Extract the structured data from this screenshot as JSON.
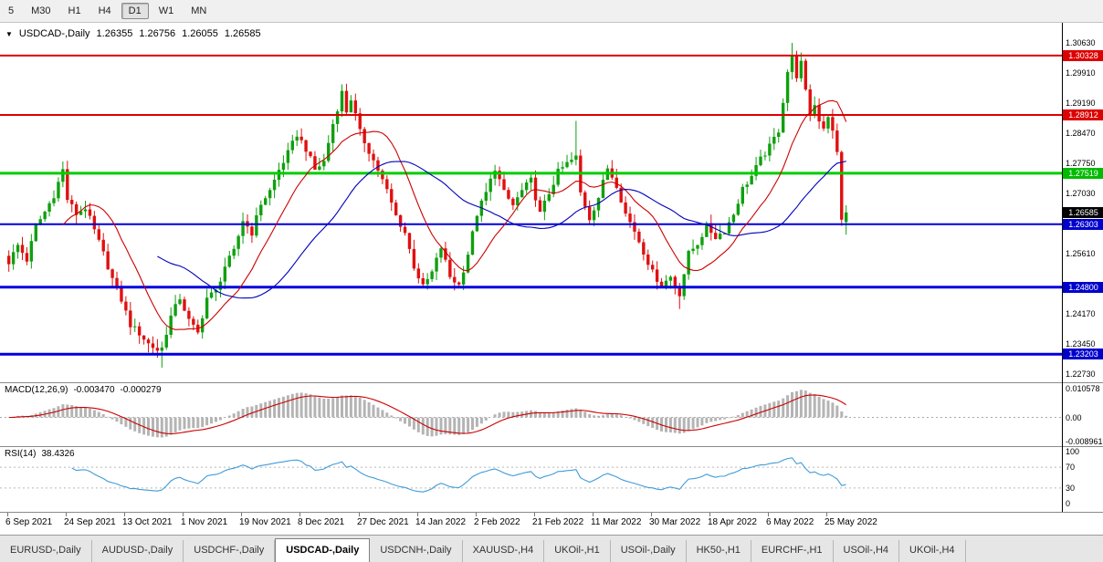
{
  "toolbar": {
    "timeframes": [
      "5",
      "M30",
      "H1",
      "H4",
      "D1",
      "W1",
      "MN"
    ],
    "active": "D1"
  },
  "chart": {
    "symbol_label": "USDCAD-,Daily",
    "ohlc": {
      "open": "1.26355",
      "high": "1.26756",
      "low": "1.26055",
      "close": "1.26585"
    }
  },
  "colors": {
    "candle_up": "#0fa00f",
    "candle_down": "#e01010",
    "ma_fast": "#cc0000",
    "ma_slow": "#0000bb",
    "macd_hist": "#b4b4b4",
    "macd_signal": "#cc0000",
    "rsi_line": "#3f9bd8",
    "hline_red": "#dd0000",
    "hline_green": "#00cc00",
    "hline_blue": "#0000dd",
    "current_price_badge": "#000000"
  },
  "hlines": [
    {
      "value": 1.30328,
      "color": "#dd0000",
      "width": 2
    },
    {
      "value": 1.28912,
      "color": "#dd0000",
      "width": 2
    },
    {
      "value": 1.27519,
      "color": "#00cc00",
      "width": 3
    },
    {
      "value": 1.26303,
      "color": "#0000dd",
      "width": 2
    },
    {
      "value": 1.248,
      "color": "#0000dd",
      "width": 3
    },
    {
      "value": 1.23203,
      "color": "#0000dd",
      "width": 3
    }
  ],
  "price_axis": {
    "ticks": [
      {
        "label": "1.30630",
        "value": 1.3063
      },
      {
        "label": "1.29910",
        "value": 1.2991
      },
      {
        "label": "1.29190",
        "value": 1.2919
      },
      {
        "label": "1.28470",
        "value": 1.2847
      },
      {
        "label": "1.27750",
        "value": 1.2775
      },
      {
        "label": "1.27030",
        "value": 1.2703
      },
      {
        "label": "1.25610",
        "value": 1.2561
      },
      {
        "label": "1.24170",
        "value": 1.2417
      },
      {
        "label": "1.23450",
        "value": 1.2345
      },
      {
        "label": "1.22730",
        "value": 1.2273
      }
    ],
    "badges": [
      {
        "label": "1.30328",
        "value": 1.30328,
        "color": "#dd0000"
      },
      {
        "label": "1.28912",
        "value": 1.28912,
        "color": "#dd0000"
      },
      {
        "label": "1.27519",
        "value": 1.27519,
        "color": "#00bb00"
      },
      {
        "label": "1.26585",
        "value": 1.26585,
        "color": "#000000"
      },
      {
        "label": "1.26303",
        "value": 1.26303,
        "color": "#0000cc"
      },
      {
        "label": "1.24800",
        "value": 1.248,
        "color": "#0000cc"
      },
      {
        "label": "1.23203",
        "value": 1.23203,
        "color": "#0000cc"
      }
    ]
  },
  "chart_data": {
    "type": "candlestick",
    "symbol": "USDCAD",
    "timeframe": "Daily",
    "bars": 187,
    "ylim": [
      1.2251,
      1.3111
    ],
    "x_range": [
      "6 Sep 2021",
      "27 May 2022"
    ],
    "last_candle": {
      "open": 1.26355,
      "high": 1.26756,
      "low": 1.26055,
      "close": 1.26585
    },
    "close_path_anchors": [
      [
        0,
        1.254
      ],
      [
        2,
        1.258
      ],
      [
        4,
        1.2545
      ],
      [
        6,
        1.2625
      ],
      [
        8,
        1.266
      ],
      [
        10,
        1.27
      ],
      [
        12,
        1.276
      ],
      [
        13,
        1.269
      ],
      [
        15,
        1.2655
      ],
      [
        17,
        1.267
      ],
      [
        19,
        1.2615
      ],
      [
        21,
        1.256
      ],
      [
        23,
        1.25
      ],
      [
        25,
        1.245
      ],
      [
        27,
        1.239
      ],
      [
        29,
        1.237
      ],
      [
        31,
        1.2345
      ],
      [
        33,
        1.233
      ],
      [
        34,
        1.2335
      ],
      [
        36,
        1.241
      ],
      [
        38,
        1.2455
      ],
      [
        40,
        1.24
      ],
      [
        42,
        1.237
      ],
      [
        44,
        1.2455
      ],
      [
        46,
        1.247
      ],
      [
        48,
        1.253
      ],
      [
        50,
        1.2565
      ],
      [
        52,
        1.264
      ],
      [
        54,
        1.261
      ],
      [
        56,
        1.268
      ],
      [
        58,
        1.271
      ],
      [
        60,
        1.276
      ],
      [
        62,
        1.28
      ],
      [
        64,
        1.2845
      ],
      [
        66,
        1.281
      ],
      [
        68,
        1.276
      ],
      [
        70,
        1.278
      ],
      [
        72,
        1.287
      ],
      [
        74,
        1.2945
      ],
      [
        75,
        1.29
      ],
      [
        76,
        1.293
      ],
      [
        78,
        1.285
      ],
      [
        80,
        1.2805
      ],
      [
        82,
        1.276
      ],
      [
        84,
        1.271
      ],
      [
        86,
        1.265
      ],
      [
        88,
        1.261
      ],
      [
        90,
        1.253
      ],
      [
        92,
        1.248
      ],
      [
        94,
        1.2515
      ],
      [
        96,
        1.2575
      ],
      [
        98,
        1.2505
      ],
      [
        100,
        1.2485
      ],
      [
        102,
        1.256
      ],
      [
        104,
        1.2655
      ],
      [
        106,
        1.2705
      ],
      [
        108,
        1.2765
      ],
      [
        110,
        1.2705
      ],
      [
        112,
        1.2675
      ],
      [
        114,
        1.271
      ],
      [
        116,
        1.2735
      ],
      [
        118,
        1.2655
      ],
      [
        120,
        1.2705
      ],
      [
        122,
        1.2755
      ],
      [
        124,
        1.2775
      ],
      [
        126,
        1.279
      ],
      [
        127,
        1.2705
      ],
      [
        129,
        1.2645
      ],
      [
        131,
        1.2695
      ],
      [
        133,
        1.2765
      ],
      [
        135,
        1.2725
      ],
      [
        137,
        1.2655
      ],
      [
        139,
        1.2615
      ],
      [
        141,
        1.2565
      ],
      [
        143,
        1.2515
      ],
      [
        145,
        1.2485
      ],
      [
        147,
        1.2505
      ],
      [
        149,
        1.2465
      ],
      [
        151,
        1.256
      ],
      [
        153,
        1.2585
      ],
      [
        155,
        1.2625
      ],
      [
        157,
        1.26
      ],
      [
        159,
        1.2615
      ],
      [
        161,
        1.2655
      ],
      [
        163,
        1.2715
      ],
      [
        165,
        1.2745
      ],
      [
        167,
        1.2785
      ],
      [
        169,
        1.2815
      ],
      [
        171,
        1.2855
      ],
      [
        173,
        1.2995
      ],
      [
        174,
        1.303
      ],
      [
        175,
        1.2985
      ],
      [
        176,
        1.3015
      ],
      [
        177,
        1.2945
      ],
      [
        178,
        1.2895
      ],
      [
        179,
        1.2915
      ],
      [
        180,
        1.288
      ],
      [
        181,
        1.2862
      ],
      [
        182,
        1.289
      ],
      [
        183,
        1.285
      ],
      [
        184,
        1.28
      ],
      [
        185,
        1.2645
      ],
      [
        186,
        1.26585
      ]
    ],
    "wick_overrides": [
      {
        "i": 12,
        "high": 1.278
      },
      {
        "i": 34,
        "low": 1.2288
      },
      {
        "i": 74,
        "high": 1.2964
      },
      {
        "i": 126,
        "high": 1.2877
      },
      {
        "i": 149,
        "low": 1.2428
      },
      {
        "i": 174,
        "high": 1.3063
      }
    ],
    "noise_amplitude": 0.0016,
    "wick_amplitude": 0.0022
  },
  "indicators": {
    "macd": {
      "label": "MACD(12,26,9)",
      "value": "-0.003470",
      "signal_value": "-0.000279",
      "fast": 12,
      "slow": 26,
      "signal": 9,
      "ylim": [
        -0.0105,
        0.0125
      ],
      "axis": [
        {
          "label": "0.010578",
          "value": 0.010578
        },
        {
          "label": "0.00",
          "value": 0
        },
        {
          "label": "-0.008961",
          "value": -0.008961
        }
      ]
    },
    "rsi": {
      "label": "RSI(14)",
      "value": "38.4326",
      "period": 14,
      "levels": [
        70,
        30
      ],
      "axis": [
        {
          "label": "100",
          "value": 100
        },
        {
          "label": "70",
          "value": 70
        },
        {
          "label": "30",
          "value": 30
        },
        {
          "label": "0",
          "value": 0
        }
      ]
    }
  },
  "date_axis": {
    "bars_per_label": 13,
    "labels": [
      "6 Sep 2021",
      "24 Sep 2021",
      "13 Oct 2021",
      "1 Nov 2021",
      "19 Nov 2021",
      "8 Dec 2021",
      "27 Dec 2021",
      "14 Jan 2022",
      "2 Feb 2022",
      "21 Feb 2022",
      "11 Mar 2022",
      "30 Mar 2022",
      "18 Apr 2022",
      "6 May 2022",
      "25 May 2022"
    ]
  },
  "tabbar": {
    "tabs": [
      "EURUSD-,Daily",
      "AUDUSD-,Daily",
      "USDCHF-,Daily",
      "USDCAD-,Daily",
      "USDCNH-,Daily",
      "XAUUSD-,H4",
      "UKOil-,H1",
      "USOil-,Daily",
      "HK50-,H1",
      "EURCHF-,H1",
      "USOil-,H4",
      "UKOil-,H4"
    ],
    "active": "USDCAD-,Daily"
  }
}
